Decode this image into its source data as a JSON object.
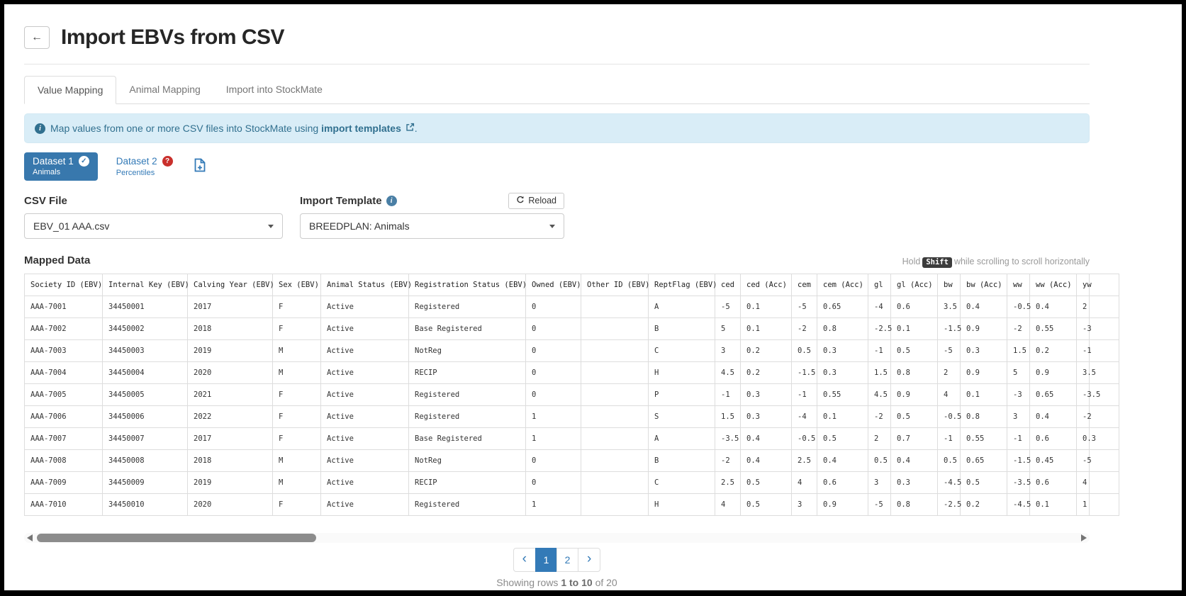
{
  "colors": {
    "accent": "#337ab7",
    "dataset_pill": "#3878ad",
    "banner_bg": "#d9edf7",
    "banner_text": "#31708f",
    "error_badge": "#c9302c",
    "kbd_bg": "#3c3c3c"
  },
  "header": {
    "back_label": "←",
    "title": "Import EBVs from CSV"
  },
  "tabs": [
    {
      "label": "Value Mapping",
      "active": true
    },
    {
      "label": "Animal Mapping",
      "active": false
    },
    {
      "label": "Import into StockMate",
      "active": false
    }
  ],
  "banner": {
    "info_icon": "info-circle",
    "text_before": "Map values from one or more CSV files into StockMate using",
    "link_text": "import templates",
    "link_icon": "external-link",
    "text_after": "."
  },
  "datasets": {
    "dataset1": {
      "title": "Dataset 1",
      "subtitle": "Animals",
      "status_icon": "check-circle",
      "selected": true
    },
    "dataset2": {
      "title": "Dataset 2",
      "subtitle": "Percentiles",
      "status_icon": "question-badge",
      "selected": false
    },
    "add_button_icon": "file-plus"
  },
  "csv_file": {
    "label": "CSV File",
    "value": "EBV_01 AAA.csv"
  },
  "import_template": {
    "label": "Import Template",
    "info_icon": "info-circle",
    "reload_label": "Reload",
    "reload_icon": "refresh",
    "value": "BREEDPLAN: Animals"
  },
  "mapped_data": {
    "heading": "Mapped Data",
    "scroll_hint_pre": "Hold",
    "scroll_hint_key": "Shift",
    "scroll_hint_post": "while scrolling to scroll horizontally",
    "columns": [
      "Society ID (EBV)",
      "Internal Key (EBV)",
      "Calving Year (EBV)",
      "Sex (EBV)",
      "Animal Status (EBV)",
      "Registration Status (EBV)",
      "Owned (EBV)",
      "Other ID (EBV)",
      "ReptFlag (EBV)",
      "ced",
      "ced (Acc)",
      "cem",
      "cem (Acc)",
      "gl",
      "gl (Acc)",
      "bw",
      "bw (Acc)",
      "ww",
      "ww (Acc)",
      "yw"
    ],
    "rows": [
      [
        "AAA-7001",
        "34450001",
        "2017",
        "F",
        "Active",
        "Registered",
        "0",
        "",
        "A",
        "-5",
        "0.1",
        "-5",
        "0.65",
        "-4",
        "0.6",
        "3.5",
        "0.4",
        "-0.5",
        "0.4",
        "2"
      ],
      [
        "AAA-7002",
        "34450002",
        "2018",
        "F",
        "Active",
        "Base Registered",
        "0",
        "",
        "B",
        "5",
        "0.1",
        "-2",
        "0.8",
        "-2.5",
        "0.1",
        "-1.5",
        "0.9",
        "-2",
        "0.55",
        "-3"
      ],
      [
        "AAA-7003",
        "34450003",
        "2019",
        "M",
        "Active",
        "NotReg",
        "0",
        "",
        "C",
        "3",
        "0.2",
        "0.5",
        "0.3",
        "-1",
        "0.5",
        "-5",
        "0.3",
        "1.5",
        "0.2",
        "-1"
      ],
      [
        "AAA-7004",
        "34450004",
        "2020",
        "M",
        "Active",
        "RECIP",
        "0",
        "",
        "H",
        "4.5",
        "0.2",
        "-1.5",
        "0.3",
        "1.5",
        "0.8",
        "2",
        "0.9",
        "5",
        "0.9",
        "3.5"
      ],
      [
        "AAA-7005",
        "34450005",
        "2021",
        "F",
        "Active",
        "Registered",
        "0",
        "",
        "P",
        "-1",
        "0.3",
        "-1",
        "0.55",
        "4.5",
        "0.9",
        "4",
        "0.1",
        "-3",
        "0.65",
        "-3.5"
      ],
      [
        "AAA-7006",
        "34450006",
        "2022",
        "F",
        "Active",
        "Registered",
        "1",
        "",
        "S",
        "1.5",
        "0.3",
        "-4",
        "0.1",
        "-2",
        "0.5",
        "-0.5",
        "0.8",
        "3",
        "0.4",
        "-2"
      ],
      [
        "AAA-7007",
        "34450007",
        "2017",
        "F",
        "Active",
        "Base Registered",
        "1",
        "",
        "A",
        "-3.5",
        "0.4",
        "-0.5",
        "0.5",
        "2",
        "0.7",
        "-1",
        "0.55",
        "-1",
        "0.6",
        "0.3"
      ],
      [
        "AAA-7008",
        "34450008",
        "2018",
        "M",
        "Active",
        "NotReg",
        "0",
        "",
        "B",
        "-2",
        "0.4",
        "2.5",
        "0.4",
        "0.5",
        "0.4",
        "0.5",
        "0.65",
        "-1.5",
        "0.45",
        "-5"
      ],
      [
        "AAA-7009",
        "34450009",
        "2019",
        "M",
        "Active",
        "RECIP",
        "0",
        "",
        "C",
        "2.5",
        "0.5",
        "4",
        "0.6",
        "3",
        "0.3",
        "-4.5",
        "0.5",
        "-3.5",
        "0.6",
        "4"
      ],
      [
        "AAA-7010",
        "34450010",
        "2020",
        "F",
        "Active",
        "Registered",
        "1",
        "",
        "H",
        "4",
        "0.5",
        "3",
        "0.9",
        "-5",
        "0.8",
        "-2.5",
        "0.2",
        "-4.5",
        "0.1",
        "1"
      ]
    ]
  },
  "pagination": {
    "prev": "‹",
    "pages": [
      "1",
      "2"
    ],
    "active_page": "1",
    "next": "›"
  },
  "footer": {
    "showing_pre": "Showing rows",
    "showing_range": "1 to 10",
    "showing_post": "of 20"
  }
}
